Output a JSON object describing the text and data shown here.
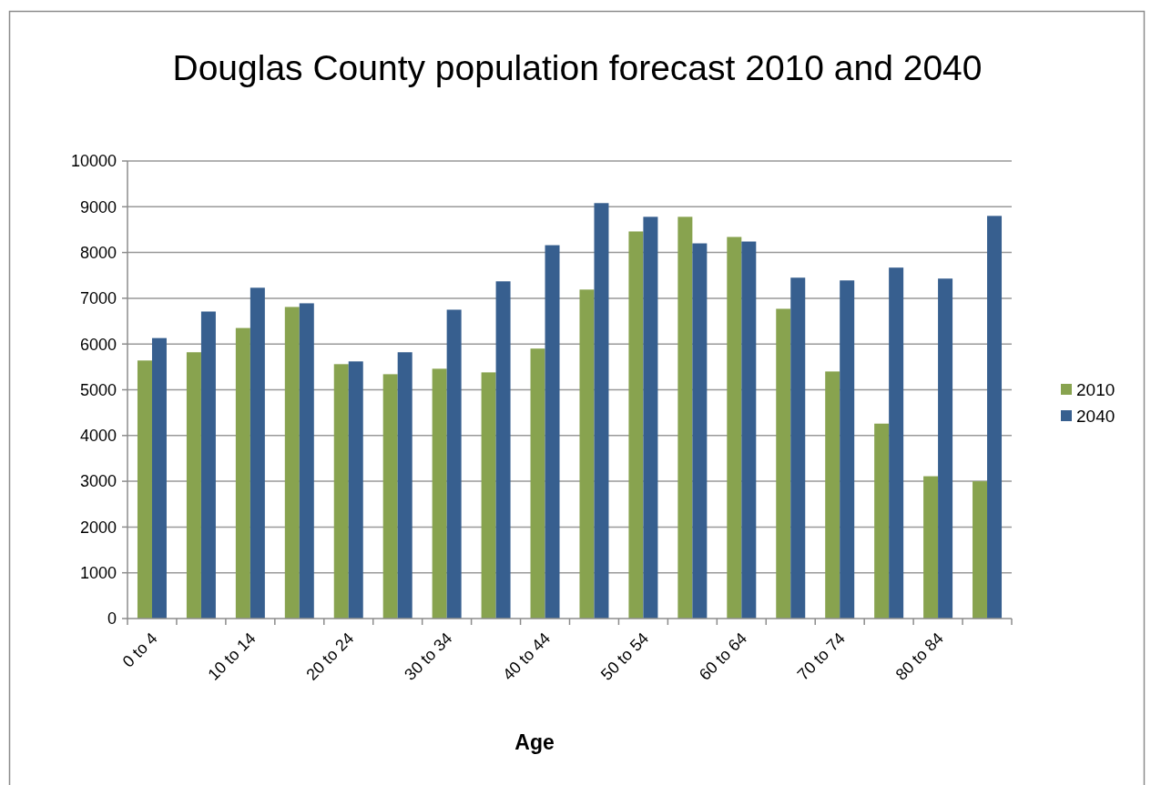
{
  "chart_data": {
    "type": "bar",
    "title": "Douglas County population forecast 2010 and 2040",
    "xlabel": "Age",
    "categories": [
      "0 to 4",
      null,
      "10 to 14",
      null,
      "20 to 24",
      null,
      "30 to 34",
      null,
      "40 to 44",
      null,
      "50 to 54",
      null,
      "60 to 64",
      null,
      "70 to 74",
      null,
      "80 to 84",
      null
    ],
    "series": [
      {
        "name": "2010",
        "color": "#88a34f",
        "values": [
          5640,
          5820,
          6350,
          6810,
          5560,
          5340,
          5460,
          5380,
          5900,
          7190,
          8460,
          8780,
          8340,
          6770,
          5400,
          4260,
          3110,
          3000
        ]
      },
      {
        "name": "2040",
        "color": "#375f8f",
        "values": [
          6130,
          6710,
          7230,
          6890,
          5620,
          5820,
          6750,
          7370,
          8160,
          9080,
          8780,
          8200,
          8240,
          7450,
          7390,
          7670,
          7430,
          8800
        ]
      }
    ],
    "ylim": [
      0,
      10000
    ],
    "yticks": [
      0,
      1000,
      2000,
      3000,
      4000,
      5000,
      6000,
      7000,
      8000,
      9000,
      10000
    ],
    "grid": "y",
    "legend": "right"
  }
}
